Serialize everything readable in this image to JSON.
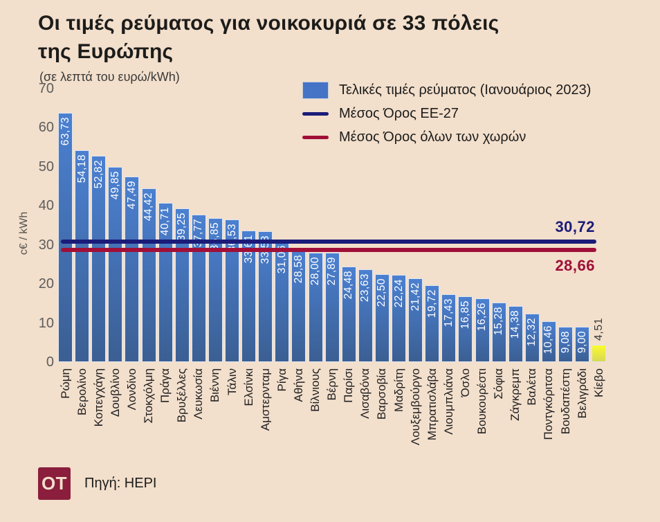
{
  "header": {
    "title": "Οι τιμές ρεύματος για νοικοκυριά σε 33 πόλεις\nτης Ευρώπης",
    "subtitle": "(σε λεπτά του ευρώ/kWh)"
  },
  "legend": {
    "items": [
      {
        "label": "Τελικές τιμές ρεύματος (Ιανουάριος 2023)",
        "swatch": "bar",
        "color": "#4573c5"
      },
      {
        "label": "Μέσος Όρος ΕΕ-27",
        "swatch": "line",
        "color": "#1b1b78"
      },
      {
        "label": "Μέσος Όρος όλων των χωρών",
        "swatch": "line",
        "color": "#a00f38"
      }
    ]
  },
  "chart_data": {
    "type": "bar",
    "title": "Οι τιμές ρεύματος για νοικοκυριά σε 33 πόλεις της Ευρώπης",
    "xlabel": "",
    "ylabel": "c€ / kWh",
    "ylim": [
      0,
      70
    ],
    "yticks": [
      0,
      10,
      20,
      30,
      40,
      50,
      60,
      70
    ],
    "grid": false,
    "legend_position": "top-right",
    "categories": [
      "Ρώμη",
      "Βερολίνο",
      "Κοπεγχάγη",
      "Δουβλίνο",
      "Λονδίνο",
      "Στοκχόλμη",
      "Πράγα",
      "Βρυξέλλες",
      "Λευκωσία",
      "Βιέννη",
      "Τάλιν",
      "Ελσίνκι",
      "Αμστερνταμ",
      "Ρίγα",
      "Αθήνα",
      "Βίλνιους",
      "Βέρνη",
      "Παρίσι",
      "Λισαβόνα",
      "Βαρσοβία",
      "Μαδρίτη",
      "Λουξεμβούργο",
      "Μπρατισλάβα",
      "Λιουμπλιάνα",
      "Όσλο",
      "Βουκουρέστι",
      "Σόφια",
      "Ζάγκρεμπ",
      "Βαλέτα",
      "Ποντγκόριτσα",
      "Βουδαπέστη",
      "Βελιγράδι",
      "Κίεβο"
    ],
    "values": [
      63.73,
      54.18,
      52.82,
      49.85,
      47.49,
      44.42,
      40.71,
      39.25,
      37.77,
      36.85,
      36.53,
      33.61,
      33.53,
      31.06,
      28.58,
      28.0,
      27.89,
      24.48,
      23.63,
      22.5,
      22.24,
      21.42,
      19.72,
      17.43,
      16.85,
      16.26,
      15.28,
      14.38,
      12.32,
      10.46,
      9.08,
      9.0,
      4.51
    ],
    "bar_color_top": "#4b80d1",
    "bar_color_bottom": "#3b5f93",
    "highlight": {
      "category": "Κίεβο",
      "color_top": "#fbfb2e",
      "color_bottom": "#d8d855"
    },
    "reference_lines": [
      {
        "name": "eu-average",
        "label": "Μέσος Όρος ΕΕ-27",
        "value": 30.72,
        "display": "30,72",
        "color": "#1b1b78"
      },
      {
        "name": "all-countries-average",
        "label": "Μέσος Όρος όλων των χωρών",
        "value": 28.66,
        "display": "28,66",
        "color": "#a00f38"
      }
    ]
  },
  "footer": {
    "logo": "OT",
    "logo_color": "#8a1e3c",
    "source": "Πηγή: HEPI"
  },
  "colors": {
    "background": "#f2dfcc",
    "title_text": "#1c1c1a",
    "tick_text": "#5d5d5d",
    "bar_value_text": "#ffffff"
  }
}
